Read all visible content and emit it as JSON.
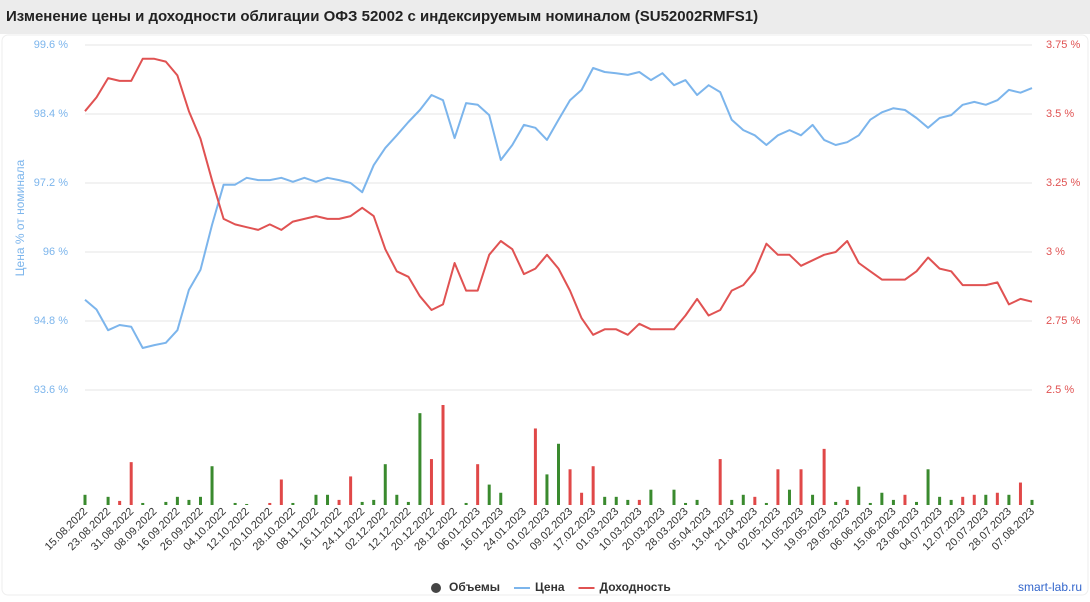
{
  "chart_data": {
    "type": "line",
    "title": "Изменение цены и доходности облигации ОФЗ 52002 с индексируемым номиналом (SU52002RMFS1)",
    "ylabel": "Цена % от номинала",
    "source": "smart-lab.ru",
    "categories": [
      "15.08.2022",
      null,
      "23.08.2022",
      null,
      "31.08.2022",
      null,
      "08.09.2022",
      null,
      "16.09.2022",
      null,
      "26.09.2022",
      null,
      "04.10.2022",
      null,
      "12.10.2022",
      null,
      "20.10.2022",
      null,
      "28.10.2022",
      null,
      "08.11.2022",
      null,
      "16.11.2022",
      null,
      "24.11.2022",
      null,
      "02.12.2022",
      null,
      "12.12.2022",
      null,
      "20.12.2022",
      null,
      "28.12.2022",
      null,
      "06.01.2023",
      null,
      "16.01.2023",
      null,
      "24.01.2023",
      null,
      "01.02.2023",
      null,
      "09.02.2023",
      null,
      "17.02.2023",
      null,
      "01.03.2023",
      null,
      "10.03.2023",
      null,
      "20.03.2023",
      null,
      "28.03.2023",
      null,
      "05.04.2023",
      null,
      "13.04.2023",
      null,
      "21.04.2023",
      null,
      "02.05.2023",
      null,
      "11.05.2023",
      null,
      "19.05.2023",
      null,
      "29.05.2023",
      null,
      "06.06.2023",
      null,
      "15.06.2023",
      null,
      "23.06.2023",
      null,
      "04.07.2023",
      null,
      "12.07.2023",
      null,
      "20.07.2023",
      null,
      "28.07.2023",
      null,
      "07.08.2023"
    ],
    "series": [
      {
        "name": "Объемы",
        "type": "bar",
        "color": "#444444",
        "bar_colors": [
          "#3a8a2e",
          "#3a8a2e",
          "#3a8a2e",
          "#e04848",
          "#e04848",
          "#3a8a2e",
          "#3a8a2e",
          "#3a8a2e",
          "#3a8a2e",
          "#3a8a2e",
          "#3a8a2e",
          "#3a8a2e",
          "#3a8a2e",
          "#3a8a2e",
          "#3a8a2e",
          "#3a8a2e",
          "#e04848",
          "#e04848",
          "#3a8a2e",
          "#3a8a2e",
          "#3a8a2e",
          "#3a8a2e",
          "#e04848",
          "#e04848",
          "#3a8a2e",
          "#3a8a2e",
          "#3a8a2e",
          "#3a8a2e",
          "#3a8a2e",
          "#3a8a2e",
          "#e04848",
          "#e04848",
          "#3a8a2e",
          "#3a8a2e",
          "#e04848",
          "#3a8a2e",
          "#3a8a2e",
          "#3a8a2e",
          "#3a8a2e",
          "#e04848",
          "#3a8a2e",
          "#3a8a2e",
          "#e04848",
          "#e04848",
          "#e04848",
          "#3a8a2e",
          "#3a8a2e",
          "#3a8a2e",
          "#e04848",
          "#3a8a2e",
          "#3a8a2e",
          "#3a8a2e",
          "#3a8a2e",
          "#3a8a2e",
          "#3a8a2e",
          "#e04848",
          "#3a8a2e",
          "#3a8a2e",
          "#e04848",
          "#3a8a2e",
          "#e04848",
          "#3a8a2e",
          "#e04848",
          "#3a8a2e",
          "#e04848",
          "#3a8a2e",
          "#e04848",
          "#3a8a2e",
          "#3a8a2e",
          "#3a8a2e",
          "#3a8a2e",
          "#e04848",
          "#3a8a2e",
          "#3a8a2e",
          "#3a8a2e",
          "#3a8a2e",
          "#e04848",
          "#e04848",
          "#3a8a2e",
          "#e04848",
          "#3a8a2e",
          "#e04848",
          "#3a8a2e"
        ],
        "values": [
          10,
          0,
          8,
          4,
          42,
          2,
          0,
          3,
          8,
          5,
          8,
          38,
          0,
          2,
          1,
          0,
          2,
          25,
          2,
          0,
          10,
          10,
          5,
          28,
          3,
          5,
          40,
          10,
          3,
          90,
          45,
          98,
          0,
          2,
          40,
          20,
          12,
          0,
          0,
          75,
          30,
          60,
          35,
          12,
          38,
          8,
          8,
          5,
          5,
          15,
          0,
          15,
          2,
          5,
          0,
          45,
          5,
          10,
          8,
          2,
          35,
          15,
          35,
          10,
          55,
          3,
          5,
          18,
          2,
          12,
          5,
          10,
          3,
          35,
          8,
          5,
          8,
          10,
          10,
          12,
          10,
          22,
          5
        ]
      },
      {
        "name": "Цена",
        "color": "#7cb5ec",
        "values": [
          95.17,
          95.0,
          94.64,
          94.73,
          94.7,
          94.33,
          94.38,
          94.42,
          94.64,
          95.34,
          95.69,
          96.47,
          97.17,
          97.17,
          97.29,
          97.25,
          97.25,
          97.29,
          97.22,
          97.29,
          97.22,
          97.29,
          97.25,
          97.2,
          97.04,
          97.51,
          97.81,
          98.03,
          98.26,
          98.47,
          98.73,
          98.64,
          97.98,
          98.59,
          98.56,
          98.38,
          97.6,
          97.86,
          98.21,
          98.16,
          97.95,
          98.3,
          98.64,
          98.82,
          99.2,
          99.13,
          99.11,
          99.08,
          99.13,
          98.99,
          99.11,
          98.9,
          98.99,
          98.73,
          98.9,
          98.78,
          98.3,
          98.12,
          98.03,
          97.86,
          98.03,
          98.12,
          98.03,
          98.21,
          97.95,
          97.86,
          97.91,
          98.03,
          98.3,
          98.43,
          98.5,
          98.47,
          98.33,
          98.16,
          98.33,
          98.38,
          98.56,
          98.61,
          98.56,
          98.64,
          98.82,
          98.77,
          98.85
        ]
      },
      {
        "name": "Доходность",
        "color": "#e05252",
        "axis": "y2",
        "values": [
          3.51,
          3.56,
          3.63,
          3.62,
          3.62,
          3.7,
          3.7,
          3.69,
          3.64,
          3.51,
          3.41,
          3.26,
          3.12,
          3.1,
          3.09,
          3.08,
          3.1,
          3.08,
          3.11,
          3.12,
          3.13,
          3.12,
          3.12,
          3.13,
          3.16,
          3.13,
          3.01,
          2.93,
          2.91,
          2.84,
          2.79,
          2.81,
          2.96,
          2.86,
          2.86,
          2.99,
          3.04,
          3.01,
          2.92,
          2.94,
          2.99,
          2.94,
          2.86,
          2.76,
          2.7,
          2.72,
          2.72,
          2.7,
          2.74,
          2.72,
          2.72,
          2.72,
          2.77,
          2.83,
          2.77,
          2.79,
          2.86,
          2.88,
          2.93,
          3.03,
          2.99,
          2.99,
          2.95,
          2.97,
          2.99,
          3.0,
          3.04,
          2.96,
          2.93,
          2.9,
          2.9,
          2.9,
          2.93,
          2.98,
          2.94,
          2.93,
          2.88,
          2.88,
          2.88,
          2.89,
          2.81,
          2.83,
          2.82
        ]
      }
    ],
    "ylim": [
      93.6,
      99.6
    ],
    "yticks": [
      {
        "value": 93.6,
        "label": "93.6 %"
      },
      {
        "value": 94.8,
        "label": "94.8 %"
      },
      {
        "value": 96,
        "label": "96 %"
      },
      {
        "value": 97.2,
        "label": "97.2 %"
      },
      {
        "value": 98.4,
        "label": "98.4 %"
      },
      {
        "value": 99.6,
        "label": "99.6 %"
      }
    ],
    "y2lim": [
      2.5,
      3.75
    ],
    "y2ticks": [
      {
        "value": 2.5,
        "label": "2.5 %"
      },
      {
        "value": 2.75,
        "label": "2.75 %"
      },
      {
        "value": 3,
        "label": "3 %"
      },
      {
        "value": 3.25,
        "label": "3.25 %"
      },
      {
        "value": 3.5,
        "label": "3.5 %"
      },
      {
        "value": 3.75,
        "label": "3.75 %"
      }
    ],
    "grid": true
  }
}
